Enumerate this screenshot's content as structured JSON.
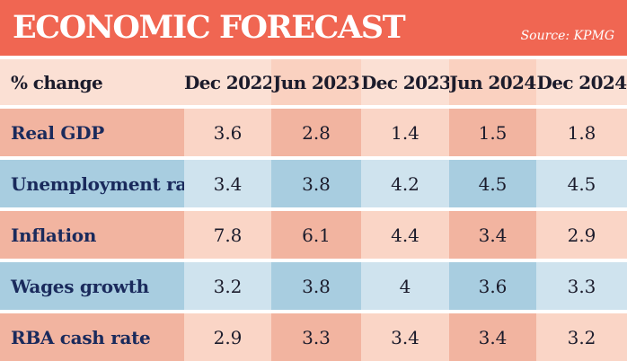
{
  "header": {
    "title": "ECONOMIC FORECAST",
    "source": "Source: KPMG"
  },
  "table": {
    "columns": [
      "% change",
      "Dec 2022",
      "Jun 2023",
      "Dec 2023",
      "Jun 2024",
      "Dec 2024"
    ],
    "rows": [
      {
        "label": "Real GDP",
        "values": [
          "3.6",
          "2.8",
          "1.4",
          "1.5",
          "1.8"
        ]
      },
      {
        "label": "Unemployment rate",
        "values": [
          "3.4",
          "3.8",
          "4.2",
          "4.5",
          "4.5"
        ]
      },
      {
        "label": "Inflation",
        "values": [
          "7.8",
          "6.1",
          "4.4",
          "3.4",
          "2.9"
        ]
      },
      {
        "label": "Wages growth",
        "values": [
          "3.2",
          "3.8",
          "4",
          "3.6",
          "3.3"
        ]
      },
      {
        "label": "RBA cash rate",
        "values": [
          "2.9",
          "3.3",
          "3.4",
          "3.4",
          "3.2"
        ]
      }
    ]
  },
  "colors": {
    "banner": "#f06652",
    "peach_dark": "#f2b4a0",
    "peach_light": "#fad5c6",
    "blue_dark": "#a8cde0",
    "blue_light": "#cfe3ee",
    "row_label": "#1a2a5c"
  }
}
